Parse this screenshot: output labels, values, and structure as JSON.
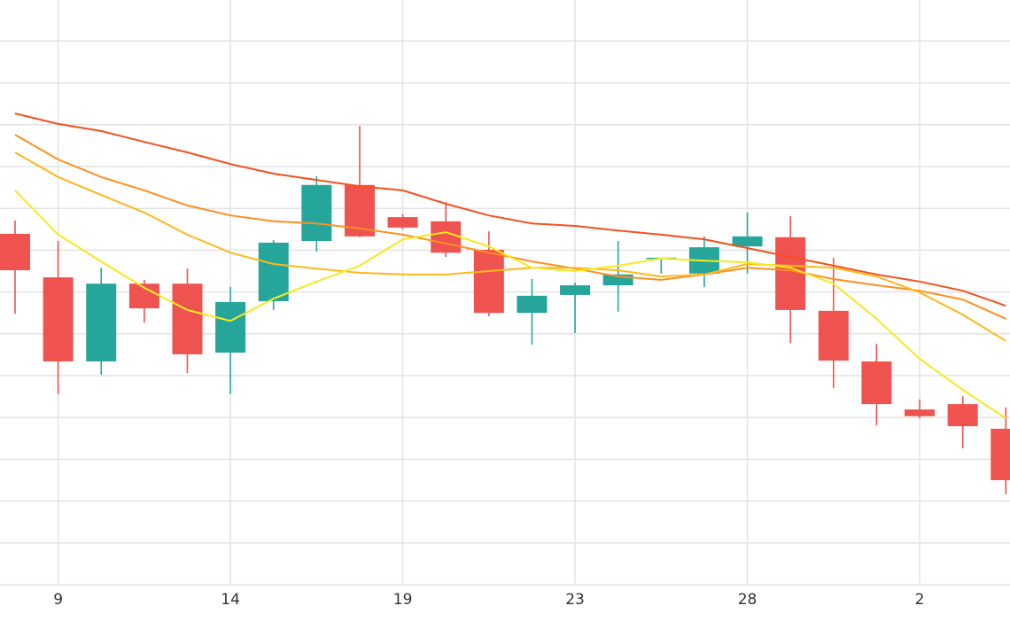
{
  "chart_data": {
    "type": "candlestick",
    "categories": [
      null,
      "9",
      null,
      null,
      null,
      "14",
      null,
      null,
      null,
      "19",
      null,
      null,
      null,
      "23",
      null,
      null,
      null,
      "28",
      null,
      null,
      null,
      "2",
      null,
      null
    ],
    "open": [
      8.39,
      7.35,
      5.34,
      7.2,
      7.2,
      5.55,
      6.78,
      8.22,
      9.56,
      8.79,
      8.69,
      8.01,
      6.5,
      6.93,
      7.16,
      7.8,
      7.44,
      8.09,
      8.31,
      6.55,
      5.34,
      4.19,
      4.32,
      3.73
    ],
    "high": [
      8.71,
      8.22,
      7.58,
      7.29,
      7.56,
      7.12,
      8.24,
      9.77,
      10.97,
      8.86,
      9.15,
      8.45,
      7.31,
      7.22,
      8.22,
      7.82,
      8.33,
      8.9,
      8.81,
      7.82,
      5.76,
      4.43,
      4.51,
      4.24
    ],
    "low": [
      6.48,
      4.56,
      5.02,
      6.27,
      5.06,
      4.56,
      6.57,
      7.97,
      8.31,
      8.5,
      7.84,
      6.42,
      5.74,
      6.02,
      6.53,
      7.44,
      7.12,
      7.44,
      5.78,
      4.7,
      3.81,
      3.98,
      3.26,
      2.16
    ],
    "close": [
      7.52,
      5.34,
      7.2,
      6.61,
      5.51,
      6.76,
      8.18,
      9.56,
      8.33,
      8.54,
      7.94,
      6.5,
      6.91,
      7.16,
      7.42,
      7.82,
      8.07,
      8.33,
      6.57,
      5.36,
      4.32,
      4.03,
      3.79,
      2.5
    ],
    "up_color": "#26a69a",
    "down_color": "#ef5350",
    "lines": [
      {
        "color": "#f4511e",
        "values": [
          11.27,
          11.02,
          10.85,
          10.59,
          10.34,
          10.06,
          9.83,
          9.68,
          9.53,
          9.43,
          9.11,
          8.83,
          8.64,
          8.58,
          8.47,
          8.37,
          8.26,
          8.05,
          7.84,
          7.63,
          7.42,
          7.25,
          7.03,
          6.67
        ]
      },
      {
        "color": "#ff8f1f",
        "values": [
          10.76,
          10.17,
          9.75,
          9.43,
          9.07,
          8.83,
          8.69,
          8.64,
          8.52,
          8.37,
          8.16,
          7.94,
          7.73,
          7.56,
          7.37,
          7.29,
          7.42,
          7.58,
          7.52,
          7.31,
          7.16,
          7.03,
          6.82,
          6.36
        ]
      },
      {
        "color": "#ffb81c",
        "values": [
          10.34,
          9.75,
          9.32,
          8.9,
          8.37,
          7.94,
          7.67,
          7.56,
          7.46,
          7.42,
          7.42,
          7.5,
          7.58,
          7.58,
          7.52,
          7.37,
          7.42,
          7.67,
          7.63,
          7.58,
          7.37,
          6.99,
          6.46,
          5.83
        ]
      },
      {
        "color": "#f5ea1e",
        "values": [
          9.43,
          8.37,
          7.73,
          7.1,
          6.57,
          6.31,
          6.84,
          7.25,
          7.63,
          8.26,
          8.43,
          8.09,
          7.58,
          7.5,
          7.63,
          7.8,
          7.75,
          7.71,
          7.58,
          7.2,
          6.36,
          5.4,
          4.66,
          3.98
        ]
      }
    ],
    "ylim": [
      0,
      14
    ],
    "yticks": [
      0,
      1,
      2,
      3,
      4,
      5,
      6,
      7,
      8,
      9,
      10,
      11,
      12,
      13
    ],
    "grid": true
  }
}
